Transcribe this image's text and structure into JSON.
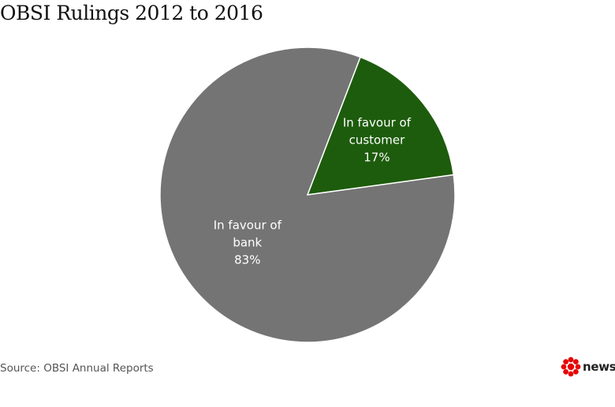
{
  "chart_data": {
    "type": "pie",
    "title": "OBSI Rulings 2012 to 2016",
    "slices": [
      {
        "label_lines": [
          "In favour of",
          "customer"
        ],
        "value": 17,
        "value_label": "17%",
        "color": "#1d5c0c"
      },
      {
        "label_lines": [
          "In favour of",
          "bank"
        ],
        "value": 83,
        "value_label": "83%",
        "color": "#747474"
      }
    ],
    "source": "Source: OBSI Annual Reports"
  },
  "branding": {
    "logo_icon": "cbc-gem-icon",
    "logo_color": "#e60505",
    "wordmark": "news"
  }
}
